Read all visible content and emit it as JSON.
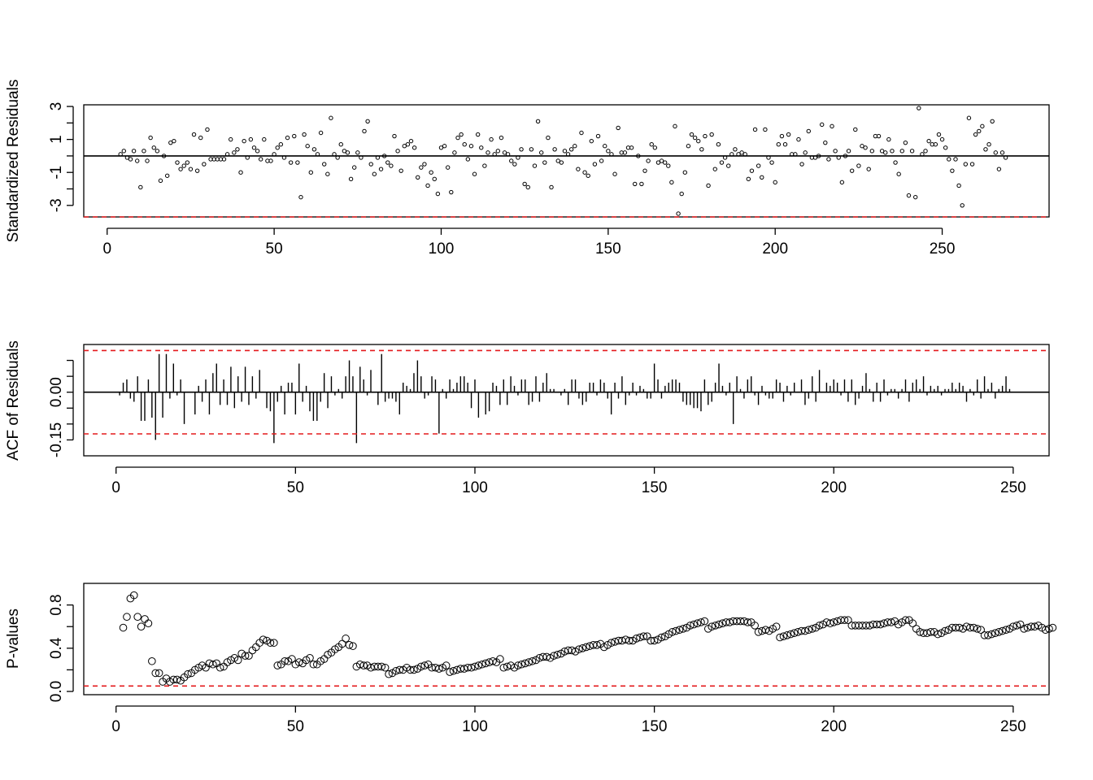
{
  "chart_data": [
    {
      "type": "scatter",
      "title": "",
      "xlabel": "",
      "ylabel": "Standardized Residuals",
      "xlim": [
        -7,
        282
      ],
      "ylim": [
        -3.7,
        3.1
      ],
      "xticks": [
        0,
        50,
        100,
        150,
        200,
        250
      ],
      "xtick_labels": [
        "0",
        "50",
        "100",
        "150",
        "200",
        "250"
      ],
      "yticks": [
        -3,
        -2,
        -1,
        0,
        1,
        2,
        3
      ],
      "ytick_labels": [
        "-3",
        "",
        "-1",
        "",
        "1",
        "",
        "3"
      ],
      "hline": 0,
      "ref_line": -3.7,
      "ref_color": "#E41A1C",
      "point_color": "#000000",
      "x_start": 4,
      "values": [
        0.1,
        0.3,
        -0.1,
        -0.2,
        0.3,
        -0.3,
        -1.9,
        0.3,
        -0.3,
        1.1,
        0.5,
        0.3,
        -1.5,
        0.0,
        -1.2,
        0.8,
        0.9,
        -0.4,
        -0.8,
        -0.6,
        -0.4,
        -0.8,
        1.3,
        -0.9,
        1.1,
        -0.5,
        1.6,
        -0.2,
        -0.2,
        -0.2,
        -0.2,
        -0.2,
        0.1,
        1.0,
        0.2,
        0.4,
        -1.0,
        0.9,
        -0.1,
        1.0,
        0.5,
        0.3,
        -0.2,
        1.0,
        -0.3,
        -0.3,
        0.1,
        0.5,
        0.7,
        -0.1,
        1.1,
        -0.4,
        1.2,
        -0.4,
        -2.5,
        1.3,
        0.6,
        -1.0,
        0.4,
        0.1,
        1.4,
        -0.5,
        -1.1,
        2.3,
        0.1,
        -0.1,
        0.7,
        0.3,
        0.2,
        -1.4,
        -0.7,
        0.2,
        -0.1,
        1.5,
        2.1,
        -0.5,
        -1.1,
        -0.1,
        -0.8,
        0.0,
        -0.4,
        -0.6,
        1.2,
        0.3,
        -0.9,
        0.6,
        0.7,
        0.9,
        0.5,
        -1.3,
        -0.7,
        -0.5,
        -1.8,
        -1.0,
        -1.4,
        -2.3,
        0.5,
        0.6,
        -0.7,
        -2.2,
        0.2,
        1.1,
        1.3,
        0.7,
        -0.2,
        0.6,
        -1.1,
        1.3,
        0.5,
        -0.6,
        0.2,
        1.0,
        0.1,
        0.3,
        1.1,
        0.2,
        0.1,
        -0.3,
        -0.5,
        -0.1,
        0.4,
        -1.7,
        -1.9,
        0.4,
        -0.6,
        2.1,
        0.2,
        -0.4,
        1.1,
        -1.9,
        0.4,
        -0.3,
        -0.4,
        0.3,
        0.1,
        0.4,
        0.6,
        -0.8,
        1.4,
        -1.0,
        -1.2,
        0.9,
        -0.5,
        1.2,
        -0.3,
        0.6,
        0.3,
        0.1,
        -1.1,
        1.7,
        0.2,
        0.2,
        0.5,
        0.5,
        -1.7,
        0.0,
        -1.7,
        -0.9,
        -0.3,
        0.7,
        0.5,
        -0.4,
        -0.3,
        -0.4,
        -0.6,
        -1.6,
        1.8,
        -3.5,
        -2.3,
        -1.0,
        0.6,
        1.3,
        1.1,
        0.9,
        0.4,
        1.2,
        -1.8,
        1.3,
        -0.8,
        0.7,
        -0.4,
        -0.1,
        -0.6,
        0.1,
        0.4,
        0.1,
        0.2,
        0.1,
        -1.4,
        -0.9,
        1.6,
        -0.6,
        -1.3,
        1.6,
        -0.1,
        -0.4,
        -1.6,
        0.7,
        1.2,
        0.7,
        1.3,
        0.1,
        0.1,
        1.0,
        -0.5,
        0.2,
        1.5,
        -0.1,
        -0.1,
        0.0,
        1.9,
        0.8,
        -0.2,
        1.8,
        0.3,
        -0.1,
        -1.6,
        0.0,
        0.3,
        -0.9,
        1.6,
        -0.6,
        0.6,
        0.5,
        -0.8,
        0.3,
        1.2,
        1.2,
        0.3,
        0.2,
        1.0,
        0.3,
        -0.4,
        -1.1,
        0.3,
        0.8,
        -2.4,
        0.3,
        -2.5,
        2.9,
        0.1,
        0.3,
        0.9,
        0.7,
        0.7,
        1.3,
        1.0,
        0.5,
        -0.2,
        -0.9,
        -0.2,
        -1.8,
        -3.0,
        -0.5,
        2.3,
        -0.5,
        1.3,
        1.5,
        1.8,
        0.4,
        0.7,
        2.1,
        0.2,
        -0.8,
        0.2,
        -0.1
      ]
    },
    {
      "type": "bar",
      "title": "",
      "xlabel": "",
      "ylabel": "ACF of Residuals",
      "xlim": [
        -9,
        260
      ],
      "ylim": [
        -0.2,
        0.15
      ],
      "xticks": [
        0,
        50,
        100,
        150,
        200,
        250
      ],
      "xtick_labels": [
        "0",
        "50",
        "100",
        "150",
        "200",
        "250"
      ],
      "yticks": [
        -0.15,
        -0.1,
        -0.05,
        0,
        0.05,
        0.1
      ],
      "ytick_labels": [
        "-0.15",
        "",
        "",
        "0.00",
        "",
        ""
      ],
      "hline": 0,
      "conf_bounds": [
        0.131,
        -0.131
      ],
      "ref_color": "#E41A1C",
      "x_start": 1,
      "values": [
        -0.01,
        0.03,
        0.04,
        -0.02,
        -0.03,
        0.05,
        -0.09,
        -0.09,
        0.04,
        -0.08,
        -0.15,
        0.12,
        -0.08,
        0.12,
        -0.02,
        0.09,
        -0.01,
        0.04,
        -0.1,
        0.0,
        0.0,
        -0.07,
        0.02,
        -0.03,
        0.04,
        -0.07,
        0.06,
        0.09,
        -0.04,
        0.04,
        -0.04,
        0.08,
        -0.05,
        0.05,
        -0.03,
        0.08,
        -0.04,
        0.05,
        -0.02,
        0.07,
        0.0,
        -0.05,
        -0.06,
        -0.16,
        -0.03,
        0.02,
        -0.07,
        0.03,
        0.03,
        -0.07,
        0.09,
        -0.03,
        0.02,
        -0.06,
        -0.09,
        -0.09,
        -0.03,
        0.06,
        -0.05,
        0.05,
        -0.01,
        0.01,
        -0.02,
        0.05,
        0.1,
        0.05,
        -0.16,
        0.08,
        0.04,
        -0.01,
        0.07,
        0.0,
        -0.04,
        0.12,
        -0.03,
        -0.02,
        -0.02,
        -0.03,
        -0.07,
        0.03,
        0.02,
        0.01,
        0.06,
        0.1,
        0.05,
        -0.02,
        -0.01,
        0.05,
        0.04,
        -0.13,
        0.01,
        -0.02,
        0.04,
        0.01,
        0.03,
        0.05,
        0.05,
        0.03,
        -0.05,
        0.04,
        -0.08,
        0.0,
        -0.07,
        -0.06,
        0.03,
        0.02,
        -0.04,
        0.04,
        -0.04,
        0.05,
        0.02,
        -0.01,
        0.04,
        0.04,
        -0.04,
        -0.03,
        0.05,
        -0.03,
        0.03,
        0.06,
        0.01,
        0.01,
        0.0,
        -0.01,
        0.01,
        -0.04,
        0.04,
        0.04,
        -0.02,
        -0.04,
        -0.03,
        0.03,
        0.03,
        -0.01,
        0.04,
        0.03,
        -0.02,
        -0.07,
        0.03,
        -0.02,
        0.05,
        -0.04,
        -0.01,
        0.03,
        -0.01,
        0.02,
        0.01,
        -0.02,
        -0.02,
        0.09,
        0.04,
        -0.02,
        0.02,
        0.03,
        0.04,
        0.04,
        0.03,
        -0.03,
        -0.04,
        -0.04,
        -0.05,
        -0.05,
        -0.06,
        0.04,
        -0.04,
        -0.03,
        0.03,
        0.09,
        0.02,
        -0.01,
        0.03,
        -0.1,
        0.05,
        0.01,
        -0.02,
        0.04,
        0.05,
        -0.01,
        -0.04,
        0.02,
        -0.01,
        -0.02,
        -0.02,
        0.04,
        0.03,
        -0.03,
        0.02,
        -0.01,
        0.03,
        0.0,
        0.04,
        -0.04,
        -0.02,
        0.05,
        -0.03,
        0.07,
        0.0,
        0.03,
        0.02,
        0.04,
        0.03,
        -0.01,
        0.04,
        -0.03,
        0.04,
        -0.04,
        -0.02,
        0.02,
        0.06,
        0.01,
        -0.03,
        0.03,
        -0.03,
        0.04,
        -0.01,
        0.01,
        0.01,
        -0.02,
        0.01,
        0.04,
        -0.03,
        0.03,
        0.04,
        0.01,
        0.05,
        -0.01,
        0.02,
        0.01,
        0.02,
        -0.01,
        0.01,
        0.01,
        0.03,
        0.01,
        0.03,
        0.02,
        -0.03,
        0.01,
        -0.01,
        0.04,
        -0.02,
        0.05,
        0.01,
        0.03,
        -0.02,
        0.01,
        0.02,
        0.05,
        0.01
      ]
    },
    {
      "type": "scatter",
      "title": "",
      "xlabel": "",
      "ylabel": "P-values",
      "xlim": [
        -9,
        260
      ],
      "ylim": [
        -0.03,
        1.0
      ],
      "xticks": [
        0,
        50,
        100,
        150,
        200,
        250
      ],
      "xtick_labels": [
        "0",
        "50",
        "100",
        "150",
        "200",
        "250"
      ],
      "yticks": [
        0,
        0.2,
        0.4,
        0.6,
        0.8
      ],
      "ytick_labels": [
        "0.0",
        "",
        "0.4",
        "",
        "0.8"
      ],
      "ref_line": 0.05,
      "ref_color": "#E41A1C",
      "x_start": 2,
      "values": [
        0.59,
        0.69,
        0.86,
        0.89,
        0.69,
        0.6,
        0.67,
        0.63,
        0.28,
        0.17,
        0.17,
        0.09,
        0.12,
        0.09,
        0.11,
        0.11,
        0.1,
        0.13,
        0.16,
        0.17,
        0.2,
        0.22,
        0.24,
        0.22,
        0.26,
        0.25,
        0.26,
        0.22,
        0.23,
        0.27,
        0.29,
        0.31,
        0.29,
        0.35,
        0.33,
        0.33,
        0.38,
        0.41,
        0.45,
        0.48,
        0.47,
        0.45,
        0.45,
        0.24,
        0.25,
        0.28,
        0.28,
        0.3,
        0.25,
        0.27,
        0.26,
        0.29,
        0.31,
        0.25,
        0.25,
        0.28,
        0.3,
        0.34,
        0.36,
        0.39,
        0.41,
        0.44,
        0.49,
        0.43,
        0.42,
        0.23,
        0.25,
        0.24,
        0.24,
        0.22,
        0.23,
        0.23,
        0.23,
        0.22,
        0.16,
        0.17,
        0.19,
        0.2,
        0.2,
        0.22,
        0.2,
        0.2,
        0.21,
        0.23,
        0.24,
        0.25,
        0.22,
        0.22,
        0.21,
        0.22,
        0.24,
        0.18,
        0.19,
        0.2,
        0.21,
        0.21,
        0.22,
        0.22,
        0.23,
        0.24,
        0.25,
        0.26,
        0.27,
        0.28,
        0.27,
        0.3,
        0.22,
        0.23,
        0.24,
        0.22,
        0.24,
        0.25,
        0.26,
        0.27,
        0.28,
        0.29,
        0.31,
        0.32,
        0.32,
        0.31,
        0.33,
        0.34,
        0.35,
        0.37,
        0.38,
        0.38,
        0.37,
        0.39,
        0.4,
        0.41,
        0.42,
        0.43,
        0.43,
        0.44,
        0.41,
        0.43,
        0.45,
        0.46,
        0.47,
        0.47,
        0.48,
        0.47,
        0.47,
        0.49,
        0.5,
        0.51,
        0.51,
        0.47,
        0.47,
        0.48,
        0.5,
        0.51,
        0.53,
        0.55,
        0.56,
        0.57,
        0.58,
        0.59,
        0.61,
        0.62,
        0.63,
        0.64,
        0.65,
        0.58,
        0.6,
        0.61,
        0.62,
        0.63,
        0.64,
        0.64,
        0.65,
        0.65,
        0.65,
        0.65,
        0.64,
        0.64,
        0.61,
        0.55,
        0.56,
        0.57,
        0.56,
        0.58,
        0.6,
        0.5,
        0.51,
        0.52,
        0.53,
        0.54,
        0.55,
        0.56,
        0.56,
        0.57,
        0.58,
        0.59,
        0.61,
        0.62,
        0.64,
        0.63,
        0.64,
        0.65,
        0.66,
        0.66,
        0.66,
        0.61,
        0.61,
        0.61,
        0.61,
        0.61,
        0.61,
        0.62,
        0.62,
        0.62,
        0.63,
        0.64,
        0.64,
        0.65,
        0.62,
        0.64,
        0.66,
        0.66,
        0.63,
        0.58,
        0.55,
        0.54,
        0.54,
        0.55,
        0.55,
        0.53,
        0.54,
        0.56,
        0.57,
        0.59,
        0.59,
        0.59,
        0.58,
        0.6,
        0.59,
        0.59,
        0.58,
        0.57,
        0.52,
        0.52,
        0.53,
        0.54,
        0.55,
        0.56,
        0.57,
        0.58,
        0.6,
        0.61,
        0.62,
        0.58,
        0.59,
        0.6,
        0.6,
        0.61,
        0.59,
        0.57,
        0.58,
        0.59
      ]
    }
  ]
}
